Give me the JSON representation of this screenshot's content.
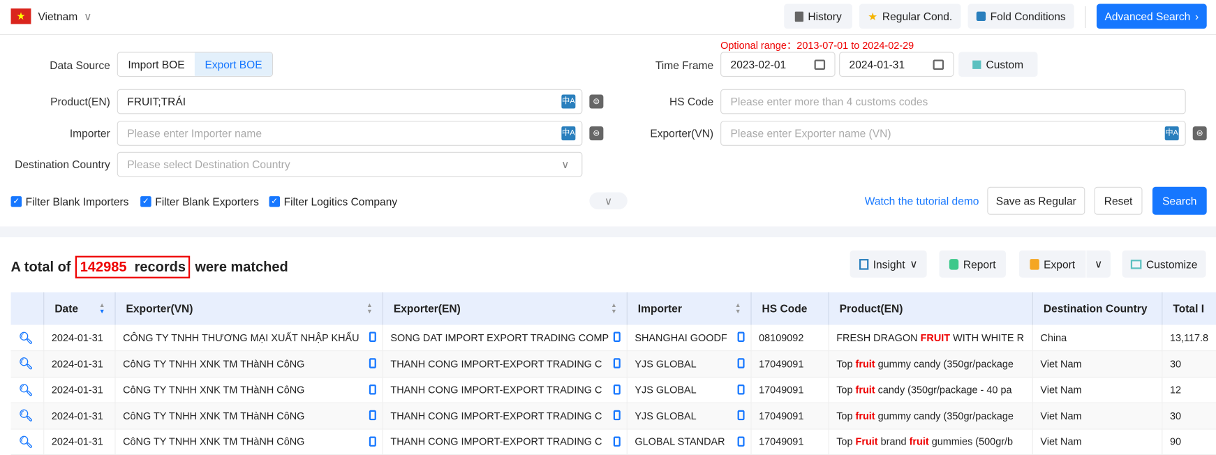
{
  "header": {
    "country": "Vietnam",
    "history": "History",
    "regular_cond": "Regular Cond.",
    "fold_conditions": "Fold Conditions",
    "advanced_search": "Advanced Search"
  },
  "form": {
    "optional_range": "Optional range：2013-07-01 to 2024-02-29",
    "data_source_label": "Data Source",
    "import_boe": "Import BOE",
    "export_boe": "Export BOE",
    "time_frame_label": "Time Frame",
    "date_from": "2023-02-01",
    "date_to": "2024-01-31",
    "custom": "Custom",
    "product_label": "Product(EN)",
    "product_value": "FRUIT;TRÁI",
    "hs_label": "HS Code",
    "hs_placeholder": "Please enter more than 4 customs codes",
    "importer_label": "Importer",
    "importer_placeholder": "Please enter Importer name",
    "exporter_label": "Exporter(VN)",
    "exporter_placeholder": "Please enter Exporter name (VN)",
    "dest_label": "Destination Country",
    "dest_placeholder": "Please select Destination Country",
    "filter_importers": "Filter Blank Importers",
    "filter_exporters": "Filter Blank Exporters",
    "filter_logistics": "Filter Logitics Company",
    "tutorial": "Watch the tutorial demo",
    "save_regular": "Save as Regular",
    "reset": "Reset",
    "search": "Search"
  },
  "results": {
    "prefix": "A total of",
    "count": "142985",
    "records": "records",
    "suffix": "were matched",
    "insight": "Insight",
    "report": "Report",
    "export": "Export",
    "customize": "Customize"
  },
  "colors": {
    "accent": "#1677ff",
    "highlight": "#e00000"
  },
  "table": {
    "columns": [
      "Date",
      "Exporter(VN)",
      "Exporter(EN)",
      "Importer",
      "HS Code",
      "Product(EN)",
      "Destination Country",
      "Total I"
    ],
    "rows": [
      {
        "date": "2024-01-31",
        "exp_vn": "CÔNG TY TNHH THƯƠNG MẠI XUẤT NHẬP KHẨU",
        "exp_en": "SONG DAT IMPORT EXPORT TRADING COMP",
        "importer": "SHANGHAI GOODF",
        "hs": "08109092",
        "p1": "FRESH DRAGON ",
        "k1": "FRUIT",
        "p2": " WITH WHITE R",
        "k2": "",
        "p3": "",
        "dest": "China",
        "total": "13,117.8"
      },
      {
        "date": "2024-01-31",
        "exp_vn": "CôNG TY TNHH XNK TM THàNH CôNG",
        "exp_en": "THANH CONG IMPORT-EXPORT TRADING C",
        "importer": "YJS GLOBAL",
        "hs": "17049091",
        "p1": "Top ",
        "k1": "fruit",
        "p2": " gummy candy (350gr/package",
        "k2": "",
        "p3": "",
        "dest": "Viet Nam",
        "total": "30"
      },
      {
        "date": "2024-01-31",
        "exp_vn": "CôNG TY TNHH XNK TM THàNH CôNG",
        "exp_en": "THANH CONG IMPORT-EXPORT TRADING C",
        "importer": "YJS GLOBAL",
        "hs": "17049091",
        "p1": "Top ",
        "k1": "fruit",
        "p2": " candy (350gr/package - 40 pa",
        "k2": "",
        "p3": "",
        "dest": "Viet Nam",
        "total": "12"
      },
      {
        "date": "2024-01-31",
        "exp_vn": "CôNG TY TNHH XNK TM THàNH CôNG",
        "exp_en": "THANH CONG IMPORT-EXPORT TRADING C",
        "importer": "YJS GLOBAL",
        "hs": "17049091",
        "p1": "Top ",
        "k1": "fruit",
        "p2": " gummy candy (350gr/package",
        "k2": "",
        "p3": "",
        "dest": "Viet Nam",
        "total": "30"
      },
      {
        "date": "2024-01-31",
        "exp_vn": "CôNG TY TNHH XNK TM THàNH CôNG",
        "exp_en": "THANH CONG IMPORT-EXPORT TRADING C",
        "importer": "GLOBAL STANDAR",
        "hs": "17049091",
        "p1": "Top ",
        "k1": "Fruit",
        "p2": " brand ",
        "k2": "fruit",
        "p3": " gummies (500gr/b",
        "dest": "Viet Nam",
        "total": "90"
      }
    ]
  }
}
